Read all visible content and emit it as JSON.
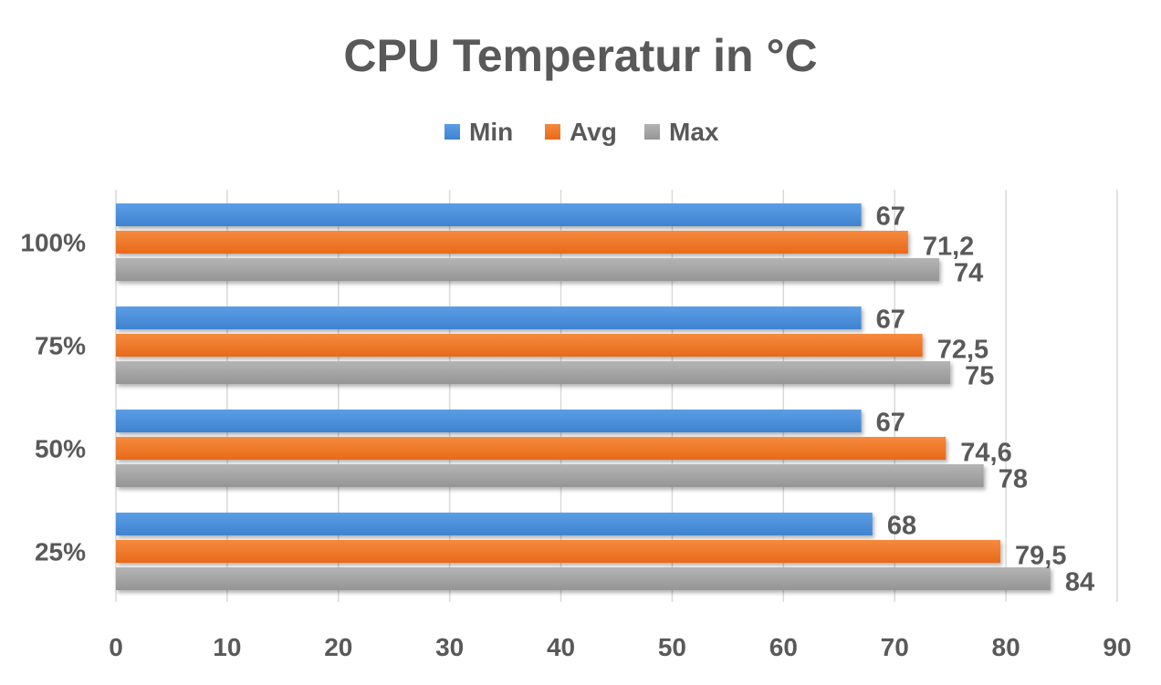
{
  "chart_data": {
    "type": "bar",
    "orientation": "horizontal",
    "title": "CPU Temperatur in °C",
    "xlabel": "",
    "ylabel": "",
    "categories": [
      "100%",
      "75%",
      "50%",
      "25%"
    ],
    "series": [
      {
        "name": "Min",
        "color": "#4a8fd8",
        "values": [
          67,
          67,
          67,
          68
        ],
        "labels": [
          "67",
          "67",
          "67",
          "68"
        ]
      },
      {
        "name": "Avg",
        "color": "#f07a2a",
        "values": [
          71.2,
          72.5,
          74.6,
          79.5
        ],
        "labels": [
          "71,2",
          "72,5",
          "74,6",
          "79,5"
        ]
      },
      {
        "name": "Max",
        "color": "#a5a5a5",
        "values": [
          74,
          75,
          78,
          84
        ],
        "labels": [
          "74",
          "75",
          "78",
          "84"
        ]
      }
    ],
    "xlim": [
      0,
      90
    ],
    "xticks": [
      0,
      10,
      20,
      30,
      40,
      50,
      60,
      70,
      80,
      90
    ],
    "grid": true,
    "legend_position": "top"
  }
}
